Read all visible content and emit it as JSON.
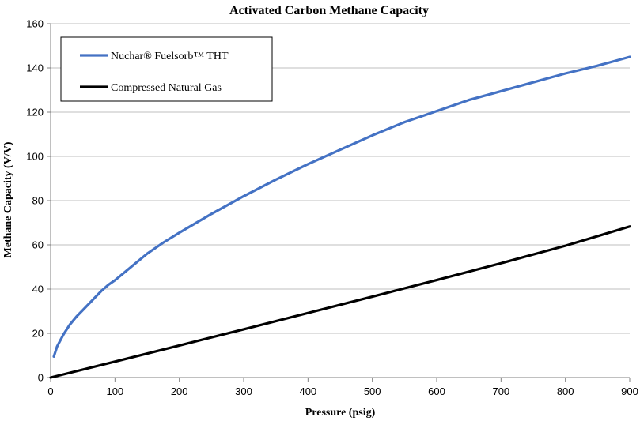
{
  "chart_data": {
    "type": "line",
    "title": "Activated Carbon Methane Capacity",
    "xlabel": "Pressure (psig)",
    "ylabel": "Methane Capacity (V/V)",
    "xlim": [
      0,
      900
    ],
    "ylim": [
      0,
      160
    ],
    "xticks": [
      0,
      100,
      200,
      300,
      400,
      500,
      600,
      700,
      800,
      900
    ],
    "yticks": [
      0,
      20,
      40,
      60,
      80,
      100,
      120,
      140,
      160
    ],
    "grid": "horizontal",
    "legend_position": "top-left",
    "series": [
      {
        "name": "Nuchar® Fuelsorb™ THT",
        "color": "#4472C4",
        "x": [
          5,
          10,
          20,
          30,
          40,
          50,
          60,
          70,
          80,
          90,
          100,
          125,
          150,
          175,
          200,
          250,
          300,
          350,
          400,
          450,
          500,
          550,
          600,
          650,
          700,
          750,
          800,
          850,
          900
        ],
        "y": [
          9.5,
          14,
          19.5,
          24,
          27.5,
          30.5,
          33.5,
          36.5,
          39.5,
          42,
          44,
          50,
          56,
          61,
          65.5,
          74,
          82,
          89.5,
          96.5,
          103,
          109.5,
          115.5,
          120.5,
          125.5,
          129.5,
          133.5,
          137.5,
          141,
          145
        ]
      },
      {
        "name": "Compressed Natural Gas",
        "color": "#000000",
        "x": [
          0,
          100,
          200,
          300,
          400,
          500,
          600,
          700,
          800,
          900
        ],
        "y": [
          0,
          7.2,
          14.5,
          21.8,
          29.2,
          36.6,
          44.1,
          51.7,
          59.6,
          68.3
        ]
      }
    ]
  }
}
